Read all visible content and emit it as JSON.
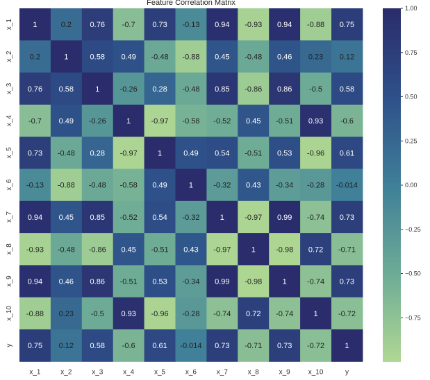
{
  "chart_data": {
    "type": "heatmap",
    "title": "Feature Correlation Matrix",
    "xlabel": "",
    "ylabel": "",
    "x_labels": [
      "x_1",
      "x_2",
      "x_3",
      "x_4",
      "x_5",
      "x_6",
      "x_7",
      "x_8",
      "x_9",
      "x_10",
      "y"
    ],
    "y_labels": [
      "x_1",
      "x_2",
      "x_3",
      "x_4",
      "x_5",
      "x_6",
      "x_7",
      "x_8",
      "x_9",
      "x_10",
      "y"
    ],
    "values": [
      [
        1,
        0.2,
        0.76,
        -0.7,
        0.73,
        -0.13,
        0.94,
        -0.93,
        0.94,
        -0.88,
        0.75
      ],
      [
        0.2,
        1,
        0.58,
        0.49,
        -0.48,
        -0.88,
        0.45,
        -0.48,
        0.46,
        0.23,
        0.12
      ],
      [
        0.76,
        0.58,
        1,
        -0.26,
        0.28,
        -0.48,
        0.85,
        -0.86,
        0.86,
        -0.5,
        0.58
      ],
      [
        -0.7,
        0.49,
        -0.26,
        1,
        -0.97,
        -0.58,
        -0.52,
        0.45,
        -0.51,
        0.93,
        -0.6
      ],
      [
        0.73,
        -0.48,
        0.28,
        -0.97,
        1,
        0.49,
        0.54,
        -0.51,
        0.53,
        -0.96,
        0.61
      ],
      [
        -0.13,
        -0.88,
        -0.48,
        -0.58,
        0.49,
        1,
        -0.32,
        0.43,
        -0.34,
        -0.28,
        -0.014
      ],
      [
        0.94,
        0.45,
        0.85,
        -0.52,
        0.54,
        -0.32,
        1,
        -0.97,
        0.99,
        -0.74,
        0.73
      ],
      [
        -0.93,
        -0.48,
        -0.86,
        0.45,
        -0.51,
        0.43,
        -0.97,
        1,
        -0.98,
        0.72,
        -0.71
      ],
      [
        0.94,
        0.46,
        0.86,
        -0.51,
        0.53,
        -0.34,
        0.99,
        -0.98,
        1,
        -0.74,
        0.73
      ],
      [
        -0.88,
        0.23,
        -0.5,
        0.93,
        -0.96,
        -0.28,
        -0.74,
        0.72,
        -0.74,
        1,
        -0.72
      ],
      [
        0.75,
        0.12,
        0.58,
        -0.6,
        0.61,
        -0.014,
        0.73,
        -0.71,
        0.73,
        -0.72,
        1
      ]
    ],
    "colorbar": {
      "min": -1,
      "max": 1,
      "ticks": [
        1.0,
        0.75,
        0.5,
        0.25,
        0.0,
        -0.25,
        -0.5,
        -0.75
      ],
      "tick_labels": [
        "1.00",
        "0.75",
        "0.50",
        "0.25",
        "0.00",
        "−0.25",
        "−0.50",
        "−0.75"
      ]
    },
    "colormap": {
      "low": "#a8d493",
      "mid": "#4a8f95",
      "high": "#2c2f6e"
    },
    "annotations": true,
    "grid": false
  }
}
